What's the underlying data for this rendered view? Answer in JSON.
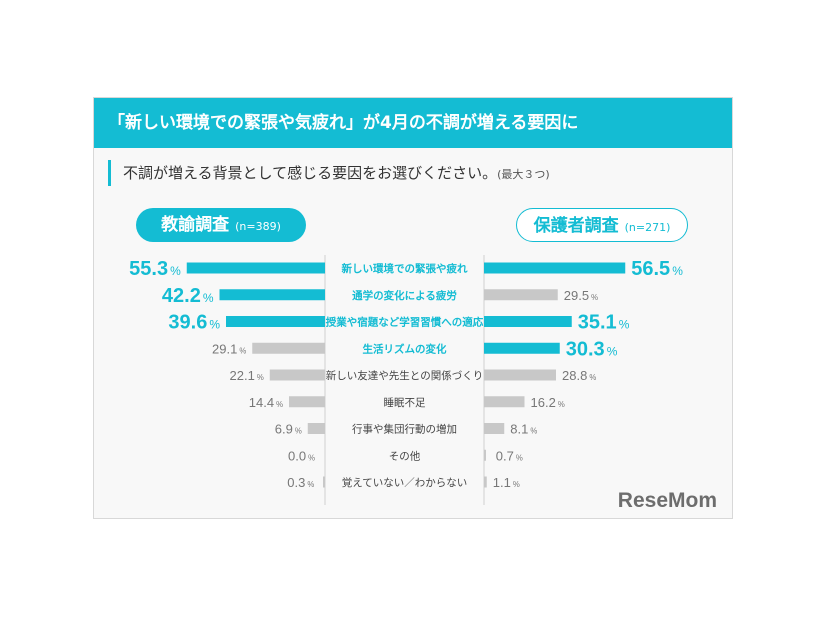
{
  "header": {
    "title": "「新しい環境での緊張や気疲れ」が4月の不調が増える要因に"
  },
  "question": {
    "text": "不調が増える背景として感じる要因をお選びください。",
    "note": "(最大３つ)"
  },
  "logo": "ReseMom",
  "colors": {
    "accent": "#14bcd3",
    "muted": "#c8c8c8",
    "muted_text": "#777777"
  },
  "chart_data": {
    "type": "bar",
    "orientation": "horizontal-butterfly",
    "unit": "%",
    "categories": [
      "新しい環境での緊張や疲れ",
      "通学の変化による疲労",
      "授業や宿題など学習習慣への適応",
      "生活リズムの変化",
      "新しい友達や先生との関係づくり",
      "睡眠不足",
      "行事や集団行動の増加",
      "その他",
      "覚えていない／わからない"
    ],
    "highlight_categories": [
      0,
      1,
      2,
      3
    ],
    "series": [
      {
        "name": "教諭調査",
        "n_label": "(n=389)",
        "values": [
          55.3,
          42.2,
          39.6,
          29.1,
          22.1,
          14.4,
          6.9,
          0.0,
          0.3
        ],
        "highlighted": [
          0,
          1,
          2
        ]
      },
      {
        "name": "保護者調査",
        "n_label": "(n=271)",
        "values": [
          56.5,
          29.5,
          35.1,
          30.3,
          28.8,
          16.2,
          8.1,
          0.7,
          1.1
        ],
        "highlighted": [
          0,
          2,
          3
        ]
      }
    ]
  }
}
